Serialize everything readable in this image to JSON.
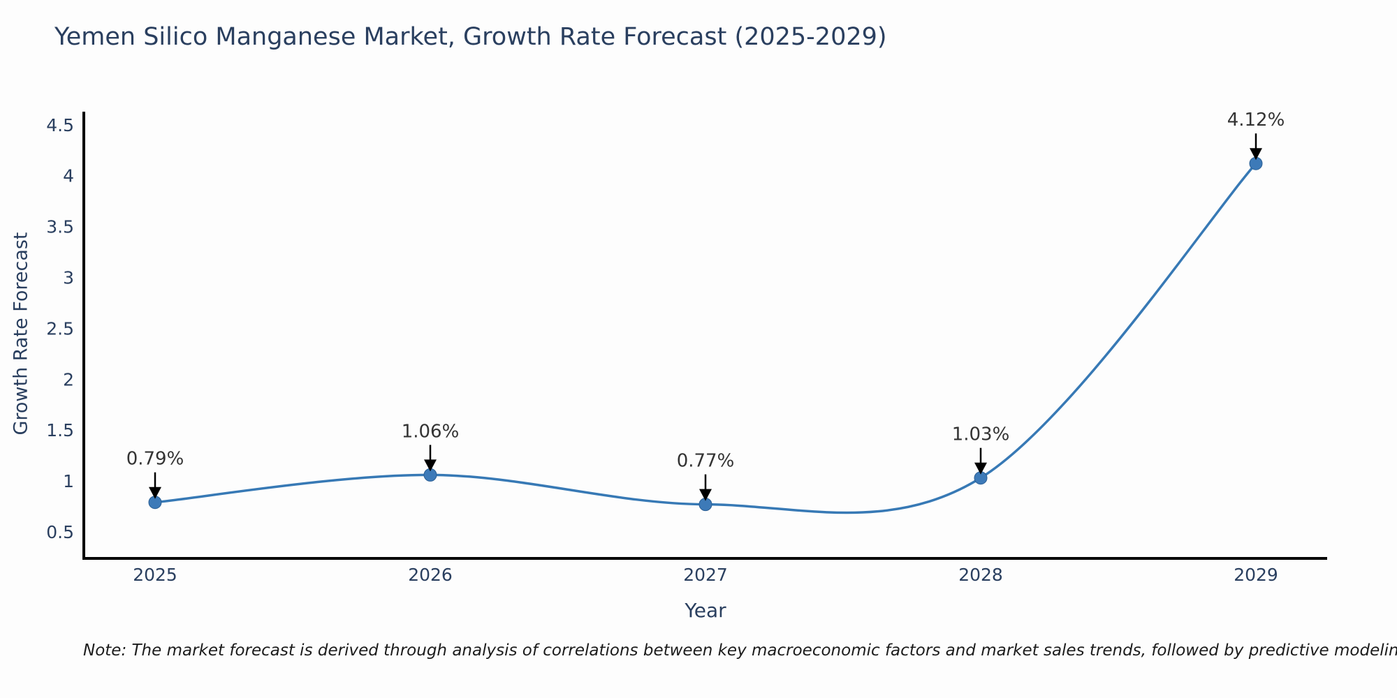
{
  "title": "Yemen Silico Manganese Market, Growth Rate Forecast (2025-2029)",
  "note": "Note: The market forecast is derived through analysis of correlations between key macroeconomic factors and market sales trends, followed by predictive modeling to project future sales",
  "chart_data": {
    "type": "line",
    "line_shape": "spline",
    "categories": [
      "2025",
      "2026",
      "2027",
      "2028",
      "2029"
    ],
    "values": [
      0.79,
      1.06,
      0.77,
      1.03,
      4.12
    ],
    "point_labels": [
      "0.79%",
      "1.06%",
      "0.77%",
      "1.03%",
      "4.12%"
    ],
    "title": "Yemen Silico Manganese Market, Growth Rate Forecast (2025-2029)",
    "xlabel": "Year",
    "ylabel": "Growth Rate Forecast",
    "yticks": [
      0.5,
      1,
      1.5,
      2,
      2.5,
      3,
      3.5,
      4,
      4.5
    ],
    "ylim": [
      0.23,
      4.62
    ],
    "grid": false,
    "legend": "none",
    "colors": {
      "line": "#3779b5",
      "marker_fill": "#3d7ab8",
      "marker_edge": "#2b5f94",
      "axis": "#000000",
      "chart_text": "#2a3f5f",
      "annotation_text": "#333333",
      "arrow": "#000000",
      "background": "#fdfdfd"
    }
  }
}
